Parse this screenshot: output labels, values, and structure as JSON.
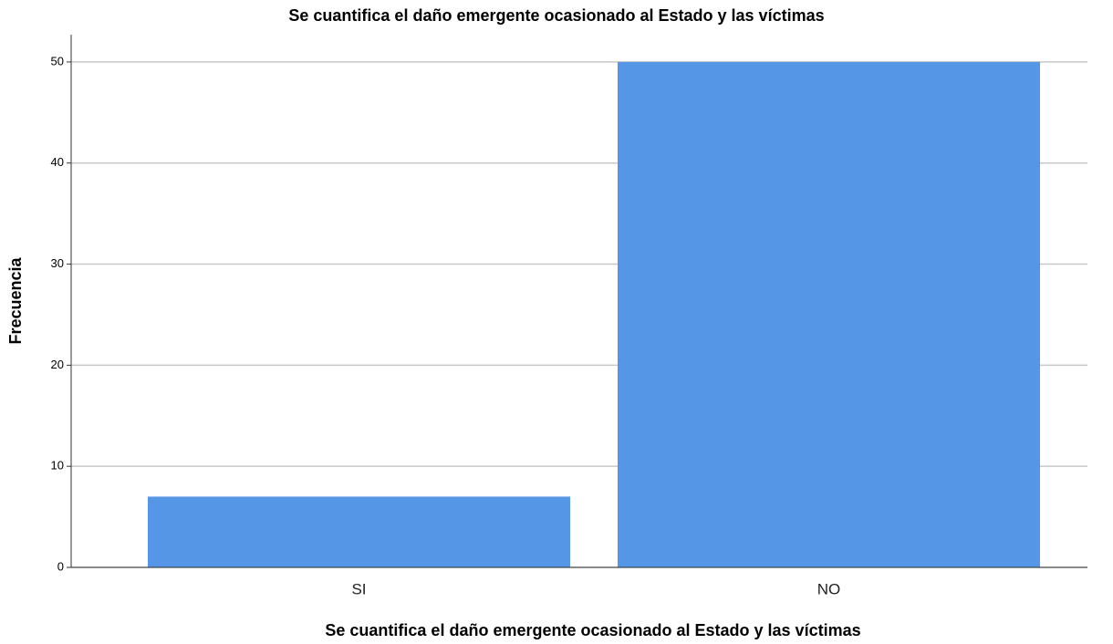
{
  "chart_data": {
    "type": "bar",
    "title": "Se cuantifica el daño emergente ocasionado al Estado y las víctimas",
    "x_label": "Se cuantifica el daño emergente ocasionado al Estado y las víctimas",
    "y_label": "Frecuencia",
    "categories": [
      "SI",
      "NO"
    ],
    "values": [
      7,
      50
    ],
    "color": "#5596e6",
    "ylim": [
      0,
      52.7
    ],
    "yticks": [
      0,
      10,
      20,
      30,
      40,
      50
    ],
    "grid": true
  }
}
